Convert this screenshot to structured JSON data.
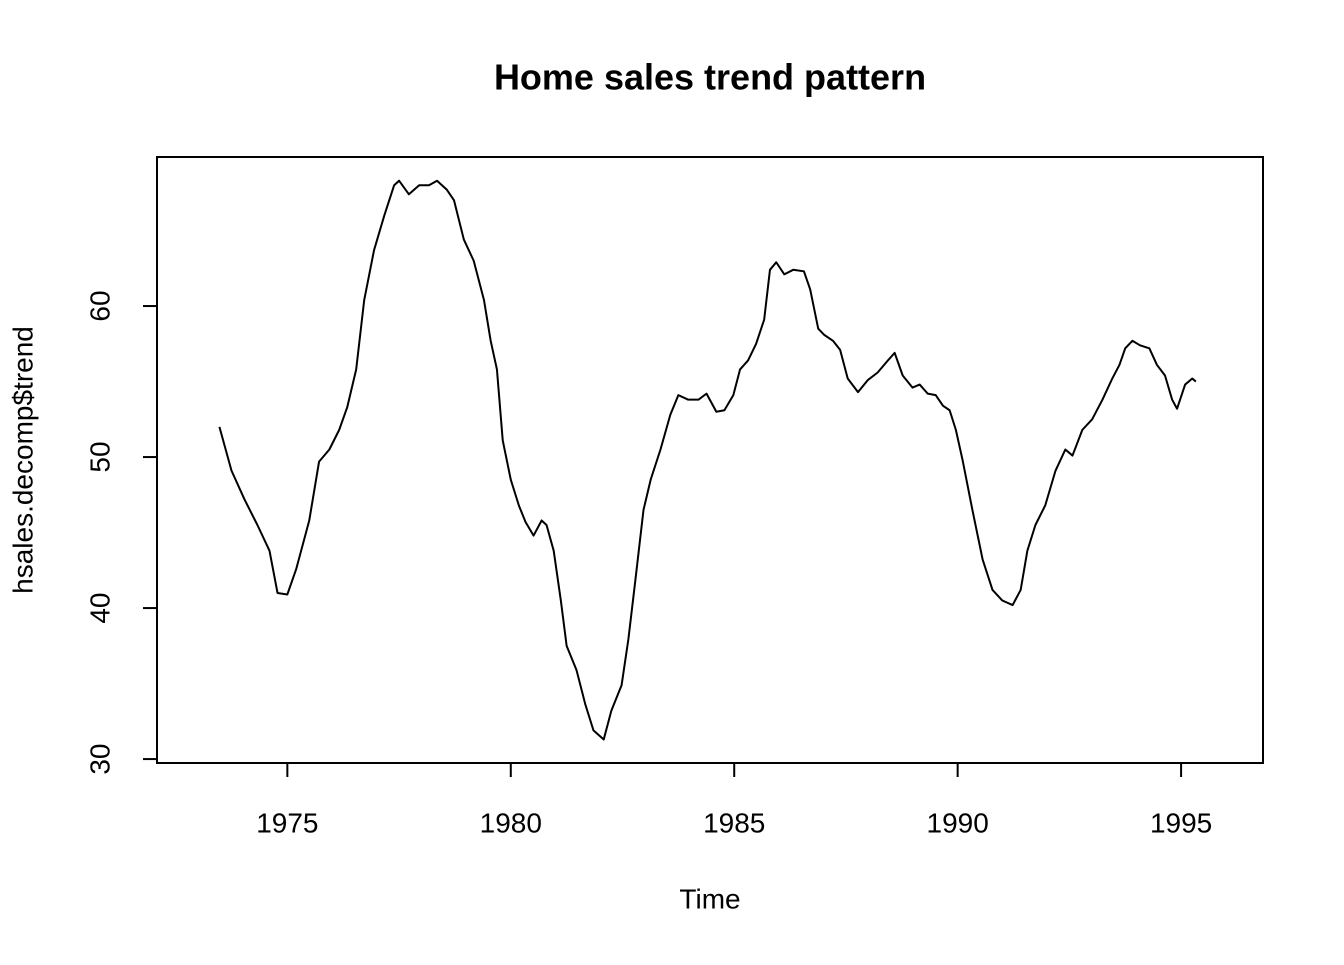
{
  "chart_data": {
    "type": "line",
    "title": "Home sales trend pattern",
    "x_label": "Time",
    "y_label": "hsales.decomp$trend",
    "x": [
      1973.48,
      1973.75,
      1974.04,
      1974.33,
      1974.6,
      1974.78,
      1975.0,
      1975.2,
      1975.49,
      1975.71,
      1975.94,
      1976.16,
      1976.34,
      1976.54,
      1976.72,
      1976.94,
      1977.17,
      1977.39,
      1977.5,
      1977.72,
      1977.95,
      1978.17,
      1978.35,
      1978.57,
      1978.73,
      1978.95,
      1979.17,
      1979.4,
      1979.55,
      1979.69,
      1979.82,
      1980.0,
      1980.18,
      1980.33,
      1980.51,
      1980.69,
      1980.8,
      1980.96,
      1981.12,
      1981.25,
      1981.47,
      1981.67,
      1981.85,
      1982.08,
      1982.25,
      1982.48,
      1982.63,
      1982.79,
      1982.97,
      1983.13,
      1983.35,
      1983.57,
      1983.75,
      1983.97,
      1984.2,
      1984.38,
      1984.6,
      1984.78,
      1984.98,
      1985.13,
      1985.31,
      1985.49,
      1985.67,
      1985.8,
      1985.94,
      1986.12,
      1986.32,
      1986.56,
      1986.7,
      1986.88,
      1987.01,
      1987.21,
      1987.37,
      1987.54,
      1987.77,
      1987.99,
      1988.21,
      1988.44,
      1988.59,
      1988.77,
      1988.99,
      1989.15,
      1989.33,
      1989.51,
      1989.67,
      1989.82,
      1989.96,
      1990.11,
      1990.33,
      1990.56,
      1990.78,
      1991.0,
      1991.23,
      1991.41,
      1991.56,
      1991.74,
      1991.96,
      1992.19,
      1992.41,
      1992.57,
      1992.79,
      1993.01,
      1993.24,
      1993.46,
      1993.62,
      1993.75,
      1993.91,
      1994.08,
      1994.29,
      1994.46,
      1994.64,
      1994.8,
      1994.91,
      1995.09,
      1995.25,
      1995.33
    ],
    "values": [
      52.0,
      49.1,
      47.2,
      45.5,
      43.8,
      41.0,
      40.9,
      42.6,
      45.8,
      49.7,
      50.5,
      51.8,
      53.3,
      55.8,
      60.4,
      63.7,
      66.0,
      68.0,
      68.3,
      67.4,
      68.0,
      68.0,
      68.3,
      67.7,
      67.0,
      64.4,
      63.0,
      60.4,
      57.7,
      55.8,
      51.1,
      48.5,
      46.8,
      45.7,
      44.8,
      45.8,
      45.5,
      43.8,
      40.5,
      37.5,
      35.9,
      33.6,
      31.9,
      31.3,
      33.2,
      34.9,
      37.9,
      41.9,
      46.5,
      48.5,
      50.5,
      52.8,
      54.1,
      53.8,
      53.8,
      54.2,
      53.0,
      53.1,
      54.1,
      55.8,
      56.4,
      57.5,
      59.1,
      62.4,
      62.9,
      62.1,
      62.4,
      62.3,
      61.1,
      58.5,
      58.1,
      57.7,
      57.1,
      55.2,
      54.3,
      55.1,
      55.6,
      56.4,
      56.9,
      55.4,
      54.6,
      54.8,
      54.2,
      54.1,
      53.4,
      53.1,
      51.8,
      49.8,
      46.5,
      43.2,
      41.2,
      40.5,
      40.2,
      41.2,
      43.8,
      45.5,
      46.8,
      49.1,
      50.5,
      50.1,
      51.8,
      52.5,
      53.8,
      55.2,
      56.1,
      57.2,
      57.7,
      57.4,
      57.2,
      56.1,
      55.4,
      53.8,
      53.2,
      54.8,
      55.2,
      55.0
    ],
    "color": "#000000",
    "xlim": [
      1972.083,
      1996.833
    ],
    "xticks": [
      1975,
      1980,
      1985,
      1990,
      1995
    ],
    "ylim": [
      29.74,
      69.87
    ],
    "yticks": [
      30,
      40,
      50,
      60
    ]
  }
}
